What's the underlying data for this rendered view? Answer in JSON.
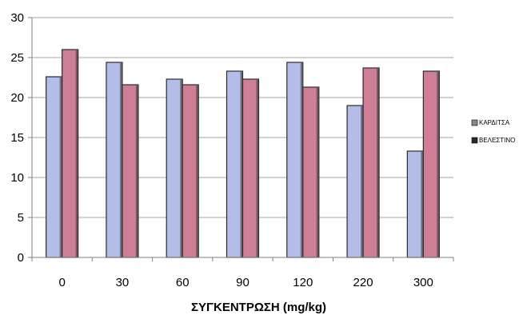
{
  "chart_data": {
    "type": "bar",
    "title": "",
    "xlabel": "ΣΥΓΚΕΝΤΡΩΣΗ (mg/kg)",
    "ylabel": "",
    "categories": [
      "0",
      "30",
      "60",
      "90",
      "120",
      "220",
      "300"
    ],
    "series": [
      {
        "name": "ΚΑΡΔΙΤΣΑ",
        "values": [
          22.6,
          24.4,
          22.3,
          23.3,
          24.4,
          19.0,
          13.3
        ],
        "color": "#b4bde8"
      },
      {
        "name": "ΒΕΛΕΣΤΙΝΟ",
        "values": [
          26.0,
          21.6,
          21.6,
          22.3,
          21.3,
          23.7,
          23.3
        ],
        "color": "#cf7f95"
      }
    ],
    "ylim": [
      0,
      30
    ],
    "yticks": [
      0,
      5,
      10,
      15,
      20,
      25,
      30
    ],
    "grid": true,
    "legend_position": "right"
  }
}
